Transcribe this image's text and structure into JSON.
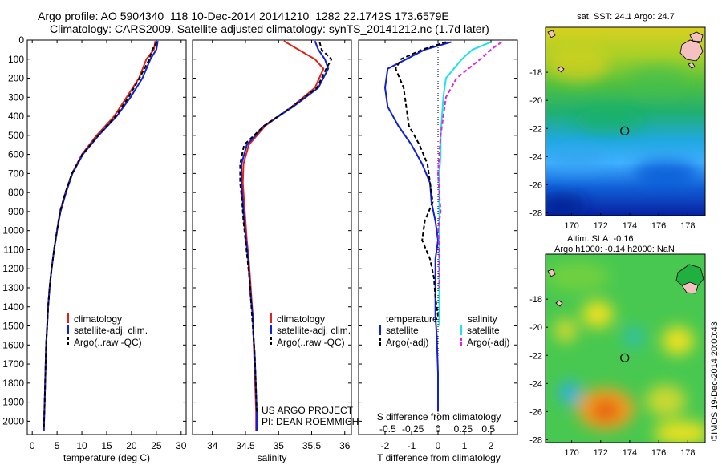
{
  "header": {
    "line1": "Argo profile: AO 5904340_118 10-Dec-2014 20141210_1282 22.1742S 173.6579E",
    "line2": "Climatology: CARS2009. Satellite-adjusted climatology: synTS_20141212.nc (1.7d later)"
  },
  "credit": {
    "line1": "US ARGO PROJECT",
    "line2": "PI: DEAN ROEMMICH"
  },
  "imos": "©IMOS 19-Dec-2014 20:00:43",
  "colors": {
    "red": "#e0201a",
    "blue": "#1020d8",
    "black": "#000000",
    "cyan": "#20e0e8",
    "magenta": "#e020e0"
  },
  "chart_data": [
    {
      "type": "line",
      "xlabel": "temperature (deg C)",
      "xlim": [
        -1,
        31
      ],
      "ylim": [
        2070,
        0
      ],
      "xticks": [
        0,
        5,
        10,
        15,
        20,
        25,
        30
      ],
      "yticks": [
        0,
        100,
        200,
        300,
        400,
        500,
        600,
        700,
        800,
        900,
        1000,
        1100,
        1200,
        1300,
        1400,
        1500,
        1600,
        1700,
        1800,
        1900,
        2000
      ],
      "legend": [
        "climatology",
        "satellite-adj. clim.",
        "Argo(..raw -QC)"
      ],
      "series": [
        {
          "name": "climatology",
          "color": "red",
          "dash": "",
          "x": [
            24.8,
            24.5,
            23.0,
            21.5,
            19.0,
            16.5,
            13.0,
            10.0,
            8.0,
            6.7,
            5.6,
            5.0,
            4.4,
            3.9,
            3.5,
            3.2,
            3.0,
            2.8,
            2.7,
            2.6,
            2.5,
            2.4,
            2.35
          ],
          "y": [
            5,
            50,
            100,
            200,
            300,
            400,
            500,
            600,
            700,
            800,
            900,
            1000,
            1100,
            1200,
            1300,
            1400,
            1500,
            1600,
            1700,
            1800,
            1900,
            2000,
            2050
          ]
        },
        {
          "name": "satellite-adj. clim.",
          "color": "blue",
          "dash": "",
          "x": [
            25.3,
            25.0,
            23.8,
            22.2,
            19.8,
            17.0,
            13.4,
            10.2,
            8.1,
            6.8,
            5.7,
            5.0,
            4.4,
            3.9,
            3.5,
            3.2,
            3.0,
            2.8,
            2.7,
            2.6,
            2.5,
            2.4,
            2.35
          ],
          "y": [
            5,
            50,
            100,
            200,
            300,
            400,
            500,
            600,
            700,
            800,
            900,
            1000,
            1100,
            1200,
            1300,
            1400,
            1500,
            1600,
            1700,
            1800,
            1900,
            2000,
            2050
          ]
        },
        {
          "name": "Argo(..raw -QC)",
          "color": "black",
          "dash": "5,3",
          "x": [
            25.1,
            24.2,
            23.6,
            21.6,
            19.4,
            16.8,
            13.3,
            10.1,
            8.0,
            6.7,
            5.6,
            5.0,
            4.4,
            3.9,
            3.5,
            3.2,
            3.0,
            2.8,
            2.7,
            2.6,
            2.5,
            2.4,
            2.35
          ],
          "y": [
            10,
            50,
            100,
            200,
            300,
            400,
            500,
            600,
            700,
            800,
            900,
            1000,
            1100,
            1200,
            1300,
            1400,
            1500,
            1600,
            1700,
            1800,
            1900,
            2000,
            2030
          ]
        }
      ]
    },
    {
      "type": "line",
      "xlabel": "salinity",
      "xlim": [
        33.7,
        36.1
      ],
      "ylim": [
        2070,
        0
      ],
      "xticks": [
        34,
        34.5,
        35,
        35.5,
        36
      ],
      "legend": [
        "climatology",
        "satellite-adj. clim.",
        "Argo(..raw -QC)"
      ],
      "series": [
        {
          "name": "climatology",
          "color": "red",
          "dash": "",
          "x": [
            35.08,
            35.3,
            35.55,
            35.68,
            35.55,
            35.2,
            34.8,
            34.55,
            34.47,
            34.46,
            34.48,
            34.5,
            34.52,
            34.55,
            34.57,
            34.59,
            34.61,
            34.62,
            34.63,
            34.64,
            34.65,
            34.66,
            34.66
          ],
          "y": [
            5,
            50,
            100,
            150,
            250,
            350,
            450,
            550,
            650,
            750,
            850,
            950,
            1050,
            1150,
            1250,
            1350,
            1450,
            1550,
            1650,
            1750,
            1850,
            1950,
            2050
          ]
        },
        {
          "name": "satellite-adj. clim.",
          "color": "blue",
          "dash": "",
          "x": [
            35.55,
            35.6,
            35.7,
            35.75,
            35.6,
            35.22,
            34.78,
            34.52,
            34.44,
            34.44,
            34.46,
            34.48,
            34.51,
            34.54,
            34.56,
            34.58,
            34.61,
            34.62,
            34.64,
            34.65,
            34.66,
            34.67,
            34.67
          ],
          "y": [
            5,
            50,
            100,
            150,
            250,
            350,
            450,
            550,
            650,
            750,
            850,
            950,
            1050,
            1150,
            1250,
            1350,
            1450,
            1550,
            1650,
            1750,
            1850,
            1950,
            2050
          ]
        },
        {
          "name": "Argo(..raw -QC)",
          "color": "black",
          "dash": "5,3",
          "x": [
            35.62,
            35.65,
            35.8,
            35.72,
            35.58,
            35.2,
            34.78,
            34.48,
            34.42,
            34.42,
            34.45,
            34.47,
            34.5,
            34.53,
            34.56,
            34.58,
            34.6,
            34.62,
            34.64,
            34.65,
            34.66,
            34.67
          ],
          "y": [
            10,
            50,
            100,
            150,
            250,
            350,
            450,
            550,
            650,
            750,
            850,
            950,
            1050,
            1150,
            1250,
            1350,
            1450,
            1550,
            1650,
            1750,
            1850,
            1950
          ]
        }
      ]
    },
    {
      "type": "line",
      "xlabel": "T difference from climatology",
      "xlabel2": "S difference from climatology",
      "xlim": [
        -3,
        3
      ],
      "ylim": [
        2070,
        0
      ],
      "xticks": [
        -2,
        -1,
        0,
        1,
        2
      ],
      "sticks": [
        "-0.5",
        "-0.25",
        "0",
        "0.25",
        "0.5"
      ],
      "sticks_x": [
        -1.9,
        -0.95,
        0,
        0.95,
        1.9
      ],
      "legend": {
        "temperature": [
          "satellite",
          "Argo(-adj)"
        ],
        "salinity": [
          "satellite",
          "Argo(-adj)"
        ]
      },
      "legend_titles": [
        "temperature",
        "salinity"
      ],
      "series": [
        {
          "name": "temperature satellite",
          "color": "blue",
          "dash": "",
          "x": [
            0.5,
            -0.5,
            -1.2,
            -1.9,
            -2.0,
            -1.9,
            -1.5,
            -1.0,
            -0.6,
            -0.3,
            -0.25,
            -0.1,
            0,
            -0.1,
            -0.1,
            -0.1,
            -0.1,
            -0.05,
            0,
            0
          ],
          "y": [
            10,
            50,
            100,
            150,
            250,
            350,
            450,
            550,
            650,
            750,
            850,
            950,
            1050,
            1150,
            1250,
            1350,
            1450,
            1550,
            1750,
            1950
          ]
        },
        {
          "name": "temperature Argo(-adj)",
          "color": "black",
          "dash": "5,3",
          "x": [
            0.3,
            -0.6,
            -1.4,
            -1.6,
            -1.3,
            -1.2,
            -1.1,
            -0.7,
            -0.4,
            -0.3,
            -0.2,
            -0.5,
            -0.6,
            -0.3,
            -0.15,
            -0.1,
            0
          ],
          "y": [
            10,
            50,
            100,
            150,
            250,
            350,
            450,
            550,
            650,
            750,
            850,
            950,
            1050,
            1150,
            1250,
            1350,
            1450
          ]
        },
        {
          "name": "salinity satellite",
          "color": "cyan",
          "dash": "",
          "x": [
            2.0,
            1.3,
            0.9,
            0.3,
            0.2,
            0.15,
            0.1,
            0.1,
            0.05,
            0.05,
            0.05,
            0.05,
            0.05,
            0.05,
            0.05,
            0.05,
            0.05
          ],
          "y": [
            10,
            50,
            100,
            200,
            300,
            400,
            500,
            600,
            700,
            800,
            900,
            1000,
            1100,
            1200,
            1300,
            1400,
            1500
          ]
        },
        {
          "name": "salinity Argo(-adj)",
          "color": "magenta",
          "dash": "5,3",
          "x": [
            2.4,
            2.0,
            1.6,
            0.7,
            0.3,
            0.2,
            0.1,
            0.05,
            0.0,
            0.05,
            0.1,
            0.0,
            0.05,
            0.05,
            0.05
          ],
          "y": [
            10,
            50,
            100,
            200,
            300,
            400,
            500,
            600,
            700,
            800,
            900,
            1000,
            1100,
            1200,
            1300
          ]
        }
      ]
    },
    {
      "type": "heatmap",
      "title": "sat. SST: 24.1  Argo: 24.7",
      "xlim": [
        168.2,
        179.2
      ],
      "ylim": [
        -28.2,
        -14.8
      ],
      "xticks": [
        170,
        172,
        174,
        176,
        178
      ],
      "yticks": [
        -18,
        -20,
        -22,
        -24,
        -26,
        -28
      ],
      "marker": {
        "lon": 173.6579,
        "lat": -22.1742
      }
    },
    {
      "type": "heatmap",
      "title": "Altim. SLA: -0.16",
      "subtitle": "Argo h1000: -0.14  h2000: NaN",
      "xlim": [
        168.2,
        179.2
      ],
      "ylim": [
        -28.2,
        -14.8
      ],
      "xticks": [
        170,
        172,
        174,
        176,
        178
      ],
      "yticks": [
        -18,
        -20,
        -22,
        -24,
        -26,
        -28
      ],
      "marker": {
        "lon": 173.6579,
        "lat": -22.1742
      }
    }
  ]
}
